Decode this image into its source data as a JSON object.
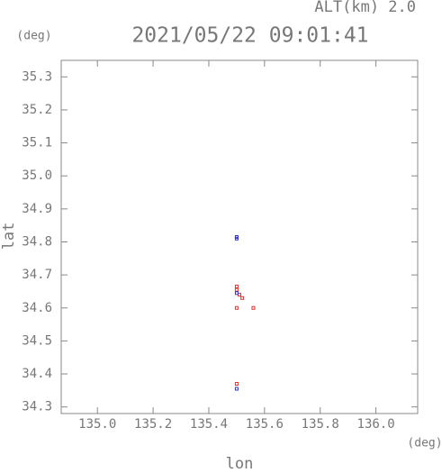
{
  "chart_data": {
    "type": "scatter",
    "title": "2021/05/22 09:01:41",
    "subtitle": "ALT(km) 2.0",
    "y_unit": "(deg)",
    "x_unit": "(deg)",
    "xlabel": "lon",
    "ylabel": "lat",
    "xlim": [
      134.87,
      136.15
    ],
    "ylim": [
      34.28,
      35.35
    ],
    "xticks": [
      {
        "value": 135.0,
        "label": "135.0"
      },
      135.2,
      135.4,
      135.6,
      135.8,
      {
        "value": 136.0,
        "label": "136.0"
      }
    ],
    "yticks": [
      34.3,
      34.4,
      34.5,
      34.6,
      34.7,
      34.8,
      34.9,
      {
        "value": 35.0,
        "label": "35.0"
      },
      35.1,
      35.2,
      35.3
    ],
    "series": [
      {
        "color": "#e03030",
        "x": [
          135.5,
          135.5,
          135.51,
          135.52,
          135.56,
          135.5,
          135.5
        ],
        "y": [
          34.665,
          34.655,
          34.64,
          34.63,
          34.6,
          34.6,
          34.37
        ]
      },
      {
        "color": "#3030d0",
        "x": [
          135.5,
          135.5,
          135.5,
          135.5
        ],
        "y": [
          34.815,
          34.81,
          34.645,
          34.355
        ]
      }
    ]
  }
}
